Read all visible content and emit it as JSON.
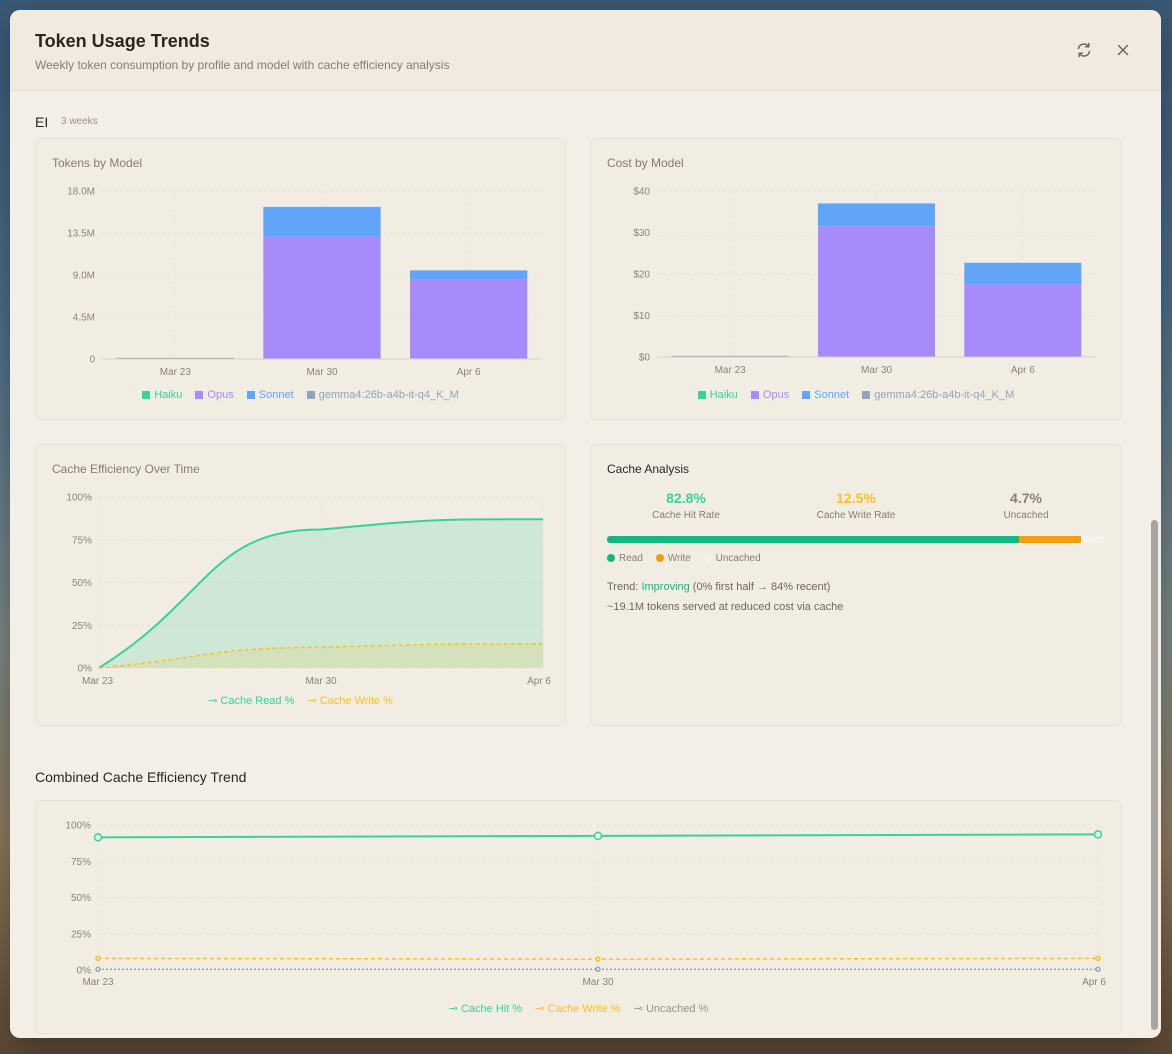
{
  "header": {
    "title": "Token Usage Trends",
    "subtitle": "Weekly token consumption by profile and model with cache efficiency analysis"
  },
  "profile": {
    "name": "EI",
    "meta": "3 weeks"
  },
  "colors": {
    "haiku": "#34d399",
    "opus": "#a78bfa",
    "sonnet": "#60a5fa",
    "gemma": "#94a3b8",
    "write": "#f59e0b",
    "uncached": "#9ca3af"
  },
  "tokens_card": {
    "title": "Tokens by Model"
  },
  "cost_card": {
    "title": "Cost by Model"
  },
  "cache_time_card": {
    "title": "Cache Efficiency Over Time"
  },
  "legend_models": [
    "Haiku",
    "Opus",
    "Sonnet",
    "gemma4:26b-a4b-it-q4_K_M"
  ],
  "legend_cache_time": [
    "Cache Read %",
    "Cache Write %"
  ],
  "legend_combined": [
    "Cache Hit %",
    "Cache Write %",
    "Uncached %"
  ],
  "analysis": {
    "title": "Cache Analysis",
    "hit_value": "82.8%",
    "hit_label": "Cache Hit Rate",
    "write_value": "12.5%",
    "write_label": "Cache Write Rate",
    "uncached_value": "4.7%",
    "uncached_label": "Uncached",
    "legend": [
      "Read",
      "Write",
      "Uncached"
    ],
    "trend_prefix": "Trend: ",
    "trend_value": "Improving",
    "trend_suffix": " (0% first half → 84% recent)",
    "served_text": "~19.1M tokens served at reduced cost via cache"
  },
  "combined_section": {
    "title": "Combined Cache Efficiency Trend"
  },
  "chart_data": [
    {
      "type": "bar",
      "title": "Tokens by Model",
      "categories": [
        "Mar 23",
        "Mar 30",
        "Apr 6"
      ],
      "yticks": [
        "0",
        "4.5M",
        "9.0M",
        "13.5M",
        "18.0M"
      ],
      "ylim": [
        0,
        18000000
      ],
      "stacked": true,
      "series": [
        {
          "name": "Haiku",
          "values": [
            0,
            0,
            0
          ]
        },
        {
          "name": "Opus",
          "values": [
            0,
            13100000,
            8500000
          ]
        },
        {
          "name": "Sonnet",
          "values": [
            0,
            3200000,
            1000000
          ]
        },
        {
          "name": "gemma4:26b-a4b-it-q4_K_M",
          "values": [
            100000,
            0,
            0
          ]
        }
      ]
    },
    {
      "type": "bar",
      "title": "Cost by Model",
      "categories": [
        "Mar 23",
        "Mar 30",
        "Apr 6"
      ],
      "yticks": [
        "$0",
        "$10",
        "$20",
        "$30",
        "$40"
      ],
      "ylim": [
        0,
        40
      ],
      "stacked": true,
      "series": [
        {
          "name": "Haiku",
          "values": [
            0,
            0,
            0
          ]
        },
        {
          "name": "Opus",
          "values": [
            0,
            31.5,
            17.5
          ]
        },
        {
          "name": "Sonnet",
          "values": [
            0,
            5.5,
            5.2
          ]
        },
        {
          "name": "gemma4:26b-a4b-it-q4_K_M",
          "values": [
            0.1,
            0,
            0
          ]
        }
      ]
    },
    {
      "type": "area",
      "title": "Cache Efficiency Over Time",
      "categories": [
        "Mar 23",
        "Mar 30",
        "Apr 6"
      ],
      "yticks": [
        "0%",
        "25%",
        "50%",
        "75%",
        "100%"
      ],
      "ylim": [
        0,
        100
      ],
      "series": [
        {
          "name": "Cache Read %",
          "values": [
            0,
            81,
            87
          ]
        },
        {
          "name": "Cache Write %",
          "values": [
            0,
            12,
            14
          ]
        }
      ]
    },
    {
      "type": "line",
      "title": "Combined Cache Efficiency Trend",
      "categories": [
        "Mar 23",
        "Mar 30",
        "Apr 6"
      ],
      "yticks": [
        "0%",
        "25%",
        "50%",
        "75%",
        "100%"
      ],
      "ylim": [
        0,
        100
      ],
      "series": [
        {
          "name": "Cache Hit %",
          "values": [
            91.5,
            92.5,
            93.5
          ]
        },
        {
          "name": "Cache Write %",
          "values": [
            8,
            7.5,
            8
          ]
        },
        {
          "name": "Uncached %",
          "values": [
            0.5,
            0.5,
            0.5
          ]
        }
      ]
    }
  ]
}
